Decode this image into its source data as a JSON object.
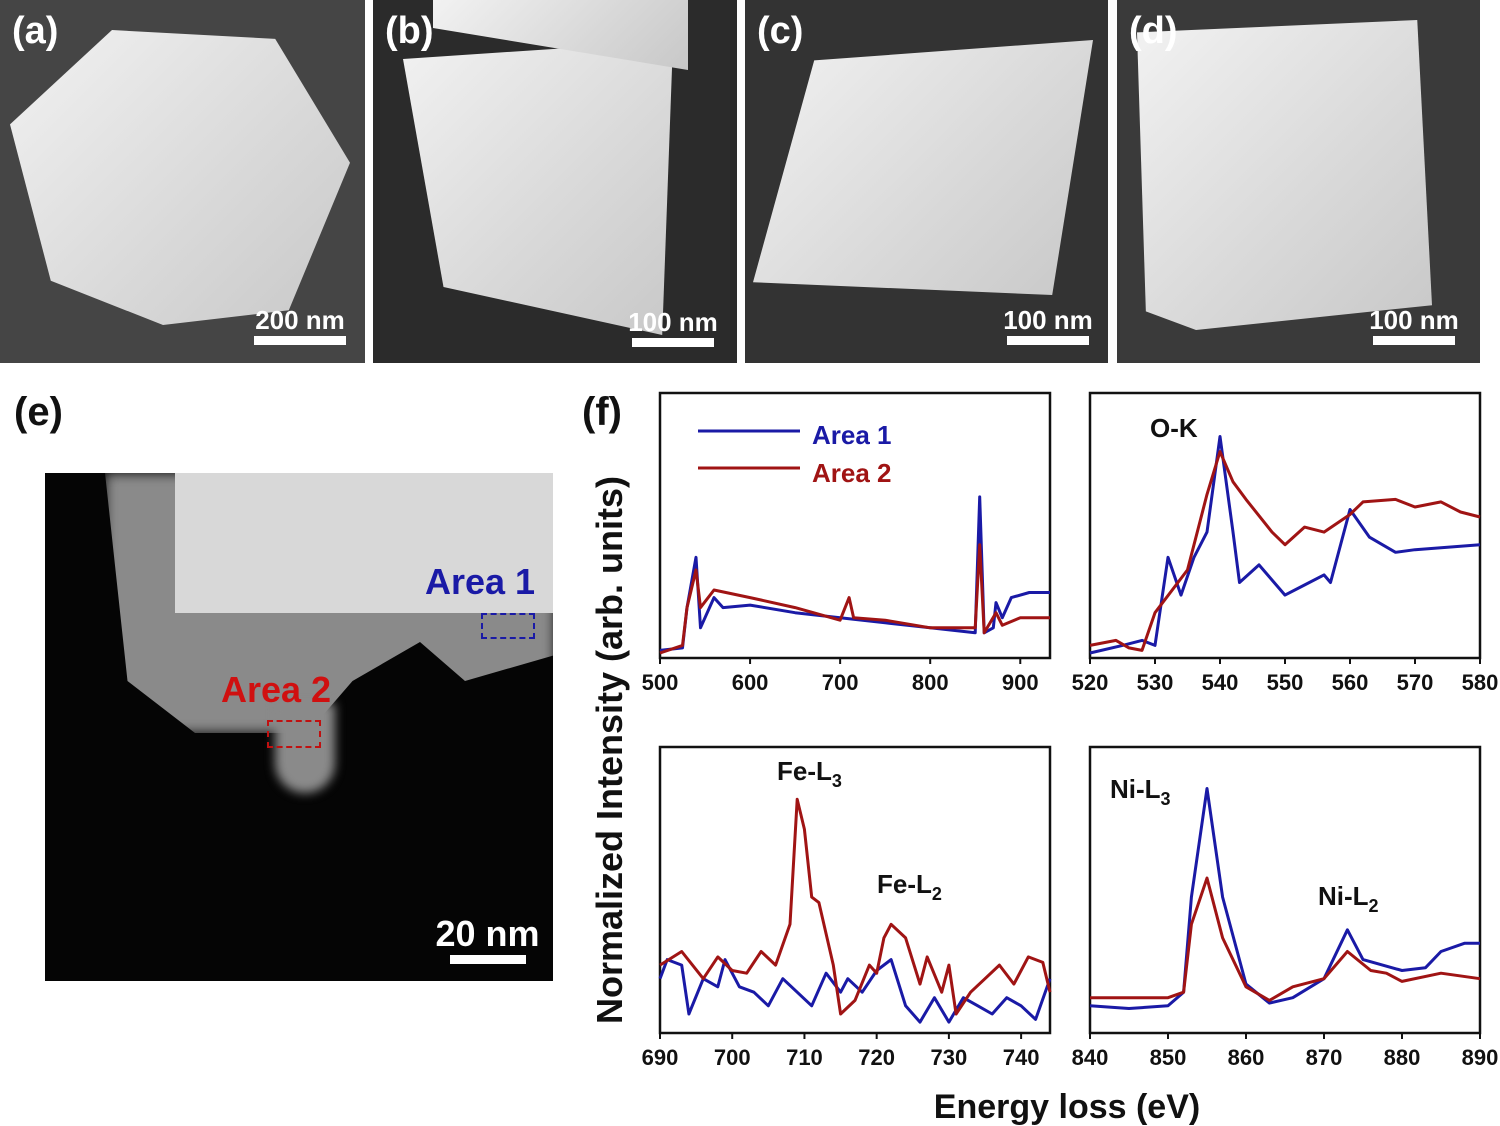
{
  "panels": {
    "a": {
      "label": "(a)",
      "scale": "200 nm"
    },
    "b": {
      "label": "(b)",
      "scale": "100 nm"
    },
    "c": {
      "label": "(c)",
      "scale": "100 nm"
    },
    "d": {
      "label": "(d)",
      "scale": "100 nm"
    },
    "e": {
      "label": "(e)",
      "scale": "20 nm",
      "area1": "Area 1",
      "area2": "Area 2"
    },
    "f": {
      "label": "(f)"
    }
  },
  "colors": {
    "area1": "#1a1aa6",
    "area2": "#a01414"
  },
  "chart_data": [
    {
      "type": "line",
      "title": "",
      "xlim": [
        500,
        933
      ],
      "ylim": [
        0,
        1
      ],
      "xticks": [
        500,
        600,
        700,
        800,
        900
      ],
      "legend": [
        "Area 1",
        "Area 2"
      ],
      "legend_position": "top-left",
      "annotations": [],
      "series": [
        {
          "name": "Area 1",
          "x": [
            500,
            525,
            530,
            540,
            545,
            555,
            560,
            570,
            600,
            650,
            700,
            750,
            800,
            850,
            855,
            860,
            870,
            873,
            880,
            890,
            910,
            933
          ],
          "y": [
            0.03,
            0.04,
            0.2,
            0.4,
            0.12,
            0.2,
            0.24,
            0.2,
            0.21,
            0.18,
            0.16,
            0.14,
            0.12,
            0.1,
            0.64,
            0.1,
            0.12,
            0.22,
            0.16,
            0.24,
            0.26,
            0.26
          ]
        },
        {
          "name": "Area 2",
          "x": [
            500,
            525,
            530,
            540,
            545,
            560,
            600,
            650,
            700,
            710,
            715,
            750,
            800,
            850,
            855,
            860,
            873,
            880,
            900,
            933
          ],
          "y": [
            0.02,
            0.05,
            0.2,
            0.35,
            0.2,
            0.27,
            0.24,
            0.2,
            0.15,
            0.24,
            0.16,
            0.15,
            0.12,
            0.12,
            0.45,
            0.1,
            0.18,
            0.13,
            0.16,
            0.16
          ]
        }
      ]
    },
    {
      "type": "line",
      "title": "",
      "xlim": [
        520,
        580
      ],
      "ylim": [
        0,
        1
      ],
      "xticks": [
        520,
        530,
        540,
        550,
        560,
        570,
        580
      ],
      "annotations": [
        "O-K"
      ],
      "series": [
        {
          "name": "Area 1",
          "x": [
            520,
            525,
            528,
            530,
            532,
            534,
            536,
            538,
            540,
            542,
            543,
            546,
            550,
            553,
            556,
            557,
            560,
            563,
            567,
            570,
            575,
            580
          ],
          "y": [
            0.02,
            0.05,
            0.07,
            0.05,
            0.4,
            0.25,
            0.4,
            0.5,
            0.88,
            0.5,
            0.3,
            0.37,
            0.25,
            0.29,
            0.33,
            0.3,
            0.59,
            0.48,
            0.42,
            0.43,
            0.44,
            0.45
          ]
        },
        {
          "name": "Area 2",
          "x": [
            520,
            524,
            526,
            528,
            530,
            535,
            538,
            540,
            542,
            544,
            548,
            550,
            553,
            556,
            560,
            562,
            567,
            570,
            574,
            577,
            580
          ],
          "y": [
            0.05,
            0.07,
            0.04,
            0.03,
            0.18,
            0.35,
            0.65,
            0.82,
            0.7,
            0.63,
            0.5,
            0.45,
            0.52,
            0.5,
            0.57,
            0.62,
            0.63,
            0.6,
            0.62,
            0.58,
            0.56
          ]
        }
      ]
    },
    {
      "type": "line",
      "title": "",
      "xlim": [
        690,
        744
      ],
      "ylim": [
        0,
        1
      ],
      "xticks": [
        690,
        700,
        710,
        720,
        730,
        740
      ],
      "annotations": [
        "Fe-L3",
        "Fe-L2"
      ],
      "series": [
        {
          "name": "Area 1",
          "x": [
            690,
            691,
            693,
            694,
            696,
            698,
            699,
            701,
            703,
            705,
            707,
            709,
            711,
            713,
            715,
            716,
            718,
            720,
            722,
            724,
            726,
            728,
            730,
            732,
            734,
            736,
            738,
            740,
            742,
            744
          ],
          "y": [
            0.2,
            0.27,
            0.25,
            0.07,
            0.2,
            0.17,
            0.27,
            0.17,
            0.15,
            0.1,
            0.2,
            0.15,
            0.1,
            0.22,
            0.15,
            0.2,
            0.15,
            0.23,
            0.27,
            0.1,
            0.04,
            0.13,
            0.04,
            0.13,
            0.1,
            0.07,
            0.13,
            0.1,
            0.05,
            0.2
          ]
        },
        {
          "name": "Area 2",
          "x": [
            690,
            693,
            696,
            698,
            700,
            702,
            704,
            706,
            708,
            709,
            710,
            711,
            712,
            714,
            715,
            717,
            719,
            720,
            721,
            722,
            724,
            726,
            727,
            729,
            730,
            731,
            733,
            735,
            737,
            739,
            741,
            743,
            744
          ],
          "y": [
            0.25,
            0.3,
            0.2,
            0.28,
            0.23,
            0.22,
            0.3,
            0.25,
            0.4,
            0.86,
            0.75,
            0.5,
            0.48,
            0.25,
            0.07,
            0.12,
            0.25,
            0.22,
            0.35,
            0.4,
            0.35,
            0.18,
            0.28,
            0.15,
            0.25,
            0.07,
            0.15,
            0.2,
            0.25,
            0.18,
            0.28,
            0.26,
            0.15
          ]
        }
      ]
    },
    {
      "type": "line",
      "title": "",
      "xlim": [
        840,
        890
      ],
      "ylim": [
        0,
        1
      ],
      "xticks": [
        840,
        850,
        860,
        870,
        880,
        890
      ],
      "annotations": [
        "Ni-L3",
        "Ni-L2"
      ],
      "series": [
        {
          "name": "Area 1",
          "x": [
            840,
            845,
            850,
            852,
            853,
            855,
            857,
            860,
            863,
            866,
            870,
            873,
            875,
            880,
            883,
            885,
            888,
            890
          ],
          "y": [
            0.1,
            0.09,
            0.1,
            0.15,
            0.5,
            0.9,
            0.5,
            0.18,
            0.11,
            0.13,
            0.2,
            0.38,
            0.27,
            0.23,
            0.24,
            0.3,
            0.33,
            0.33
          ]
        },
        {
          "name": "Area 2",
          "x": [
            840,
            845,
            850,
            852,
            853,
            855,
            857,
            860,
            863,
            866,
            870,
            873,
            876,
            878,
            880,
            885,
            890
          ],
          "y": [
            0.13,
            0.13,
            0.13,
            0.15,
            0.4,
            0.57,
            0.35,
            0.17,
            0.12,
            0.17,
            0.2,
            0.3,
            0.23,
            0.22,
            0.19,
            0.22,
            0.2
          ]
        }
      ]
    }
  ],
  "axes": {
    "ylabel": "Normalized Intensity (arb. units)",
    "xlabel": "Energy loss (eV)"
  },
  "labels": {
    "ok": "O-K",
    "fe": "Fe-L",
    "ni": "Ni-L",
    "sub3": "3",
    "sub2": "2"
  }
}
